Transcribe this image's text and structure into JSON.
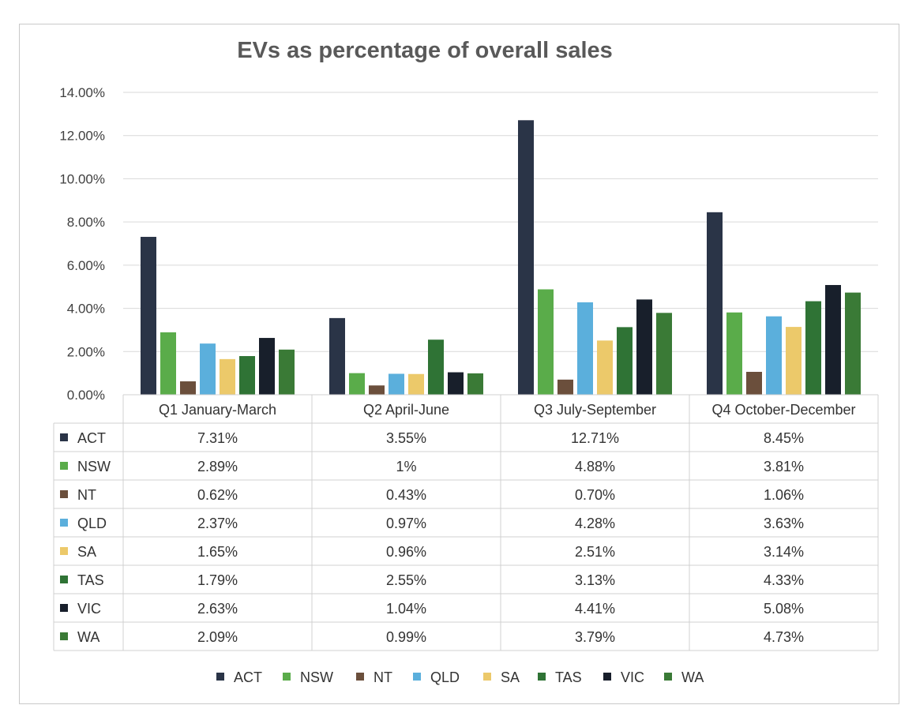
{
  "chart_data": {
    "type": "bar",
    "title": "EVs as percentage of overall sales",
    "xlabel": "",
    "ylabel": "",
    "ylim": [
      0,
      14
    ],
    "y_ticks": [
      "0.00%",
      "2.00%",
      "4.00%",
      "6.00%",
      "8.00%",
      "10.00%",
      "12.00%",
      "14.00%"
    ],
    "grid": true,
    "legend_position": "bottom",
    "categories": [
      "Q1 January-March",
      "Q2 April-June",
      "Q3 July-September",
      "Q4 October-December"
    ],
    "series": [
      {
        "name": "ACT",
        "color": "#2a3447",
        "values": [
          7.31,
          3.55,
          12.71,
          8.45
        ],
        "labels": [
          "7.31%",
          "3.55%",
          "12.71%",
          "8.45%"
        ]
      },
      {
        "name": "NSW",
        "color": "#5aac4a",
        "values": [
          2.89,
          1,
          4.88,
          3.81
        ],
        "labels": [
          "2.89%",
          "1%",
          "4.88%",
          "3.81%"
        ]
      },
      {
        "name": "NT",
        "color": "#6b4f3c",
        "values": [
          0.62,
          0.43,
          0.7,
          1.06
        ],
        "labels": [
          "0.62%",
          "0.43%",
          "0.70%",
          "1.06%"
        ]
      },
      {
        "name": "QLD",
        "color": "#5bafdc",
        "values": [
          2.37,
          0.97,
          4.28,
          3.63
        ],
        "labels": [
          "2.37%",
          "0.97%",
          "4.28%",
          "3.63%"
        ]
      },
      {
        "name": "SA",
        "color": "#ecc96a",
        "values": [
          1.65,
          0.96,
          2.51,
          3.14
        ],
        "labels": [
          "1.65%",
          "0.96%",
          "2.51%",
          "3.14%"
        ]
      },
      {
        "name": "TAS",
        "color": "#2f7335",
        "values": [
          1.79,
          2.55,
          3.13,
          4.33
        ],
        "labels": [
          "1.79%",
          "2.55%",
          "3.13%",
          "4.33%"
        ]
      },
      {
        "name": "VIC",
        "color": "#181f2b",
        "values": [
          2.63,
          1.04,
          4.41,
          5.08
        ],
        "labels": [
          "2.63%",
          "1.04%",
          "4.41%",
          "5.08%"
        ]
      },
      {
        "name": "WA",
        "color": "#3a7a36",
        "values": [
          2.09,
          0.99,
          3.79,
          4.73
        ],
        "labels": [
          "2.09%",
          "0.99%",
          "3.79%",
          "4.73%"
        ]
      }
    ]
  }
}
